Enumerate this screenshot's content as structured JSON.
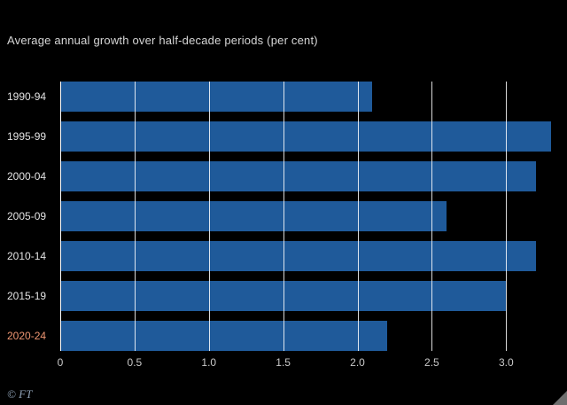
{
  "chart_data": {
    "type": "bar",
    "orientation": "horizontal",
    "subtitle": "Average annual growth over half-decade periods (per cent)",
    "categories": [
      "1990-94",
      "1995-99",
      "2000-04",
      "2005-09",
      "2010-14",
      "2015-19",
      "2020-24"
    ],
    "values": [
      2.1,
      3.3,
      3.2,
      2.6,
      3.2,
      3.0,
      2.2
    ],
    "xticks": [
      {
        "value": 0,
        "label": "0"
      },
      {
        "value": 0.5,
        "label": "0.5"
      },
      {
        "value": 1.0,
        "label": "1.0"
      },
      {
        "value": 1.5,
        "label": "1.5"
      },
      {
        "value": 2.0,
        "label": "2.0"
      },
      {
        "value": 2.5,
        "label": "2.5"
      },
      {
        "value": 3.0,
        "label": "3.0"
      }
    ],
    "xlim": [
      0,
      3.35
    ],
    "grid": true,
    "bar_color": "#1f5a9a",
    "category_label_color": "#e3e3e3",
    "highlight_category": "2020-24",
    "highlight_label_color": "#ee9672",
    "background_color": "#000000"
  },
  "footer": {
    "credit": "© FT",
    "corner_icon": "resize-corner-triangle-icon"
  }
}
